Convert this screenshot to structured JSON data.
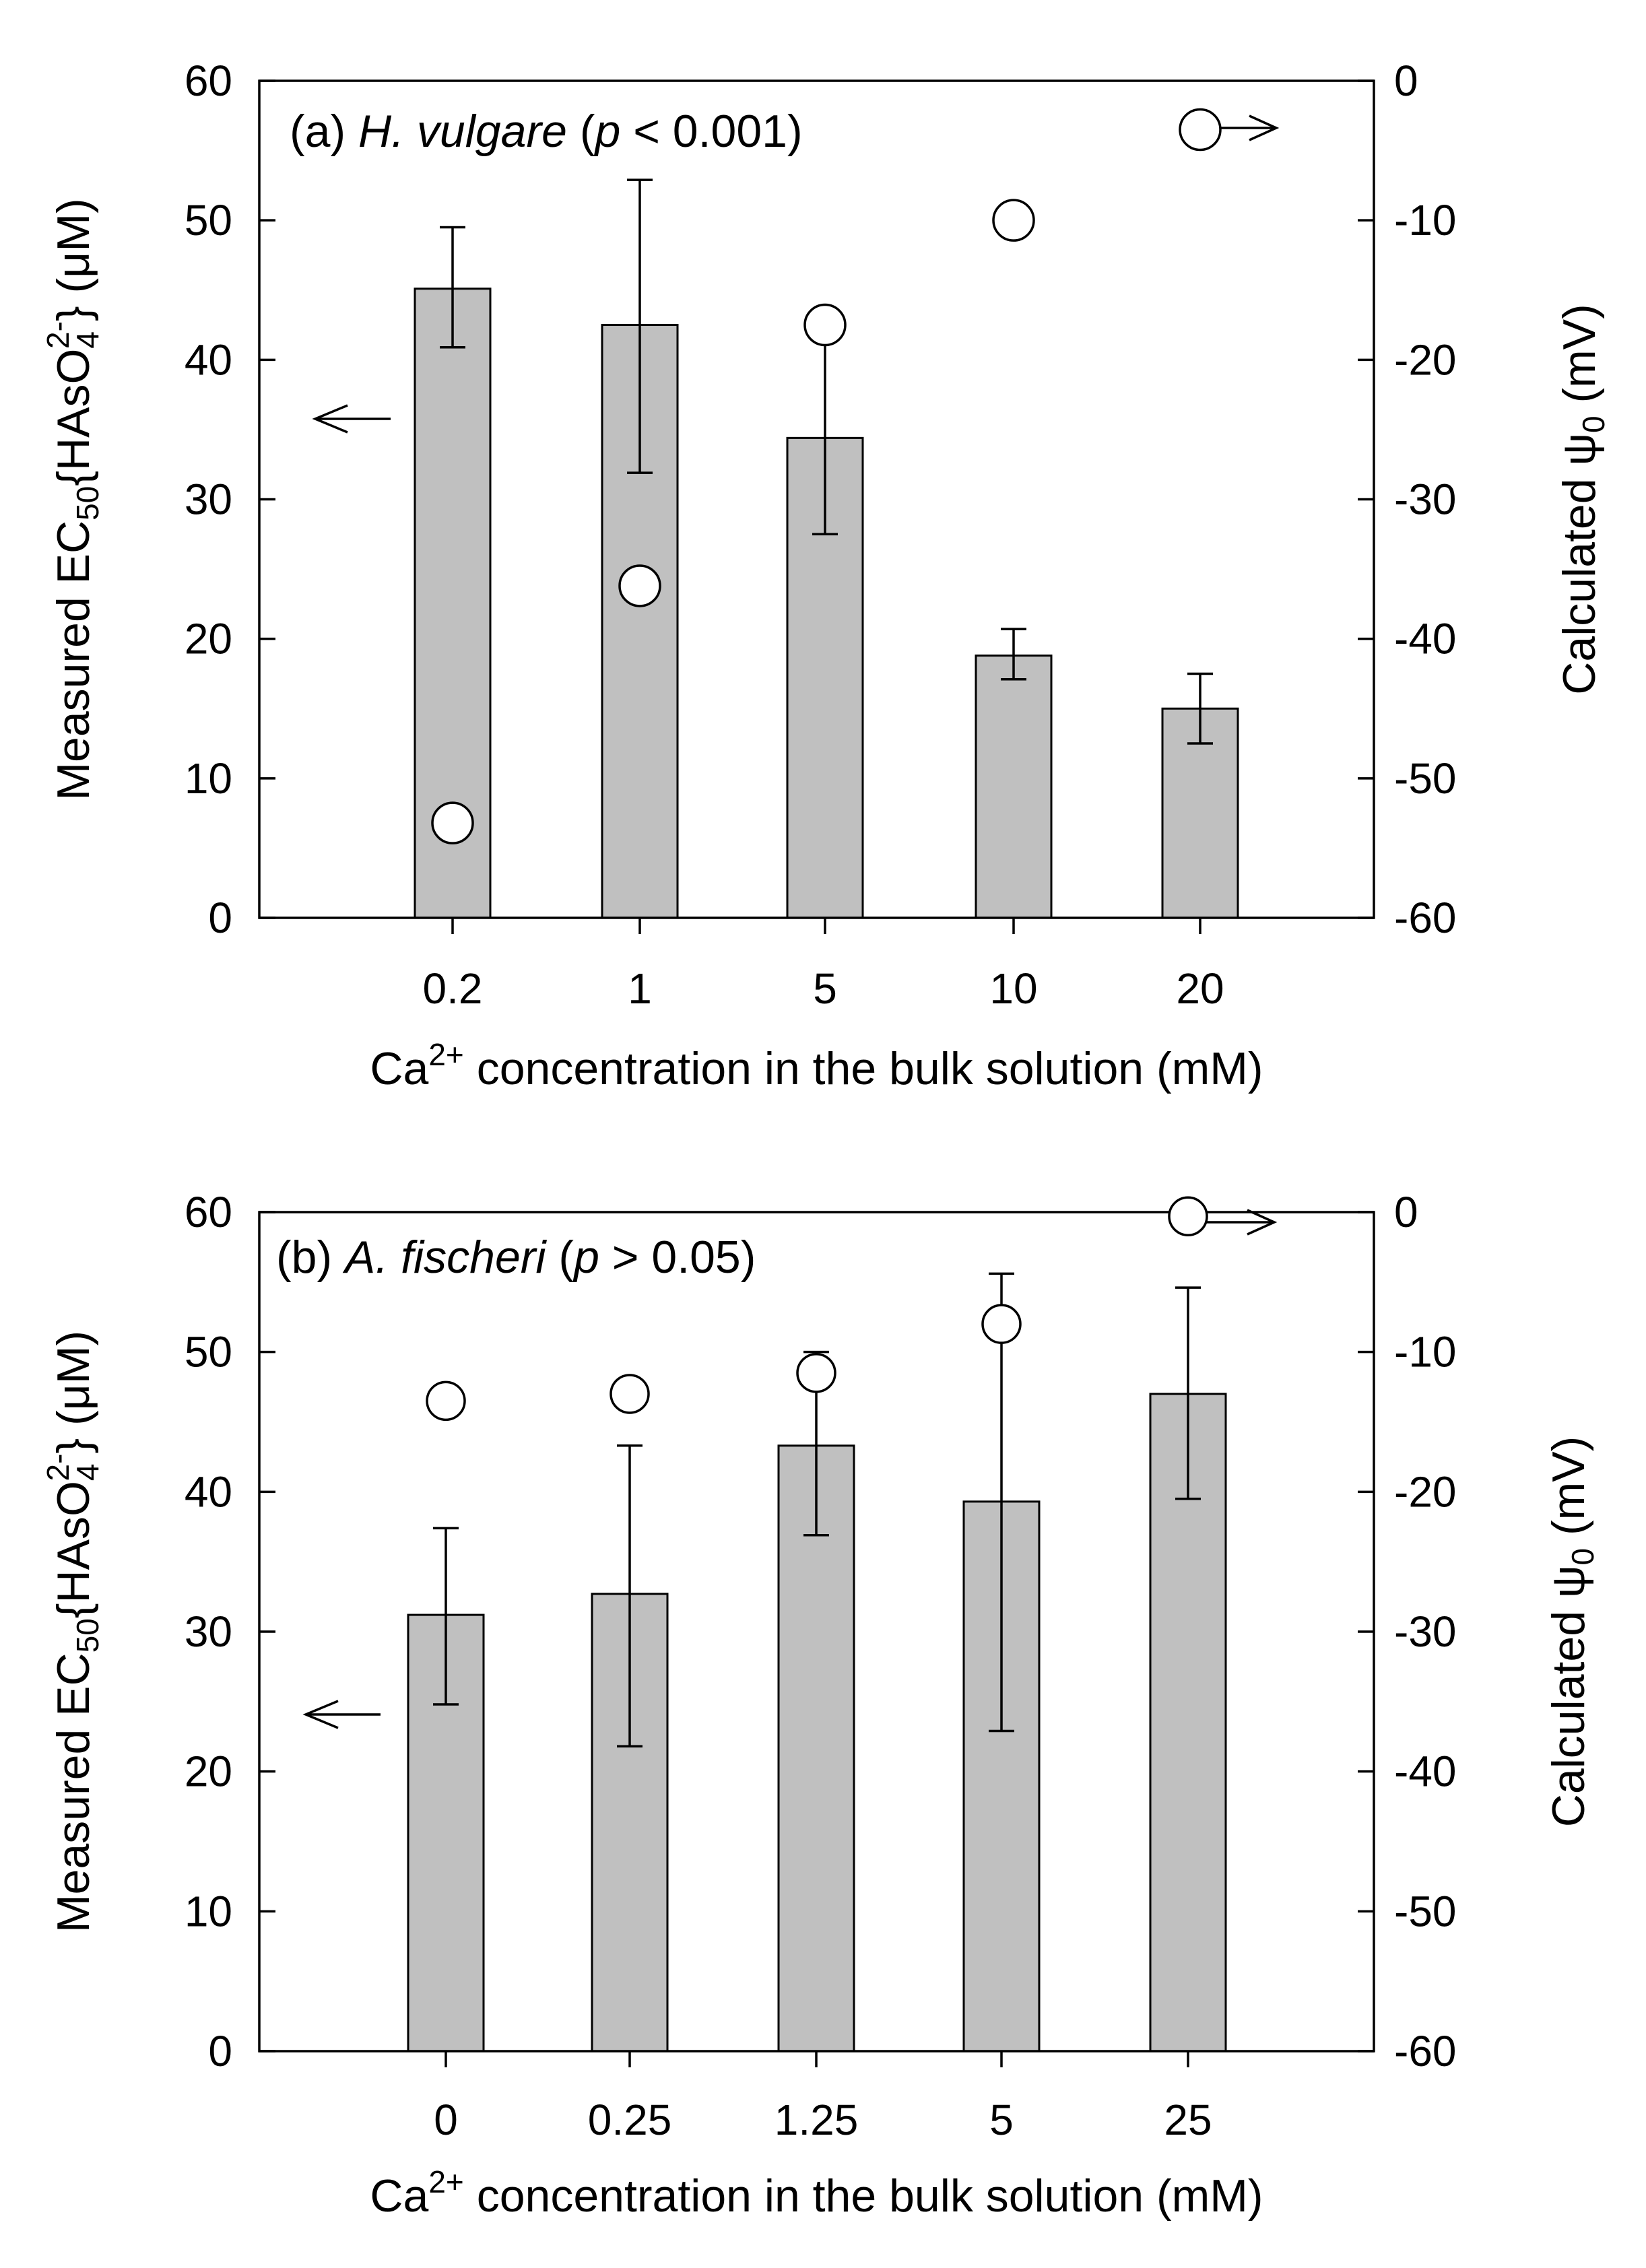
{
  "chart_data": [
    {
      "type": "bar",
      "panel_label": "(a)",
      "species": "H. vulgare",
      "p_letter": "p",
      "p_rest": " < 0.001)",
      "categories": [
        "0.2",
        "1",
        "5",
        "10",
        "20"
      ],
      "values": [
        45.1,
        42.5,
        34.4,
        18.8,
        15.0
      ],
      "error_low": [
        40.9,
        31.9,
        27.5,
        17.1,
        12.5
      ],
      "error_high": [
        49.5,
        52.9,
        41.4,
        20.7,
        17.5
      ],
      "right_values": [
        -53.2,
        -36.2,
        -17.5,
        -10.0,
        -3.5
      ],
      "ylim": [
        0,
        60
      ],
      "yticks": [
        "0",
        "10",
        "20",
        "30",
        "40",
        "50",
        "60"
      ],
      "y2lim": [
        -60,
        0
      ],
      "y2ticks": [
        "-60",
        "-50",
        "-40",
        "-30",
        "-20",
        "-10",
        "0"
      ],
      "ylabel_main": "Measured EC",
      "ylabel_sub": "50",
      "ylabel_brace": "{HAsO",
      "ylabel_sub2": "4",
      "ylabel_sup": "2-",
      "ylabel_end": "} (μM)",
      "y2label_main": "Calculated ψ",
      "y2label_sub": "0",
      "y2label_end": " (mV)",
      "xlabel_main": "Ca",
      "xlabel_sup": "2+",
      "xlabel_end": " concentration in the bulk solution (mM)"
    },
    {
      "type": "bar",
      "panel_label": "(b)",
      "species": "A. fischeri",
      "p_letter": "p",
      "p_rest": " > 0.05)",
      "categories": [
        "0",
        "0.25",
        "1.25",
        "5",
        "25"
      ],
      "values": [
        31.2,
        32.7,
        43.3,
        39.3,
        47.0
      ],
      "error_low": [
        24.8,
        21.8,
        36.9,
        22.9,
        39.5
      ],
      "error_high": [
        37.4,
        43.3,
        50.0,
        55.6,
        54.6
      ],
      "right_values": [
        -13.5,
        -13.0,
        -11.5,
        -8.0,
        -0.3
      ],
      "ylim": [
        0,
        60
      ],
      "yticks": [
        "0",
        "10",
        "20",
        "30",
        "40",
        "50",
        "60"
      ],
      "y2lim": [
        -60,
        0
      ],
      "y2ticks": [
        "-60",
        "-50",
        "-40",
        "-30",
        "-20",
        "-10",
        "0"
      ],
      "ylabel_main": "Measured EC",
      "ylabel_sub": "50",
      "ylabel_brace": "{HAsO",
      "ylabel_sub2": "4",
      "ylabel_sup": "2-",
      "ylabel_end": "} (μM)",
      "y2label_main": "Calculated ψ",
      "y2label_sub": "0",
      "y2label_end": " (mV)",
      "xlabel_main": "Ca",
      "xlabel_sup": "2+",
      "xlabel_end": " concentration in the bulk solution (mM)"
    }
  ],
  "colors": {
    "bar_fill": "#c0c0c0",
    "stroke": "#000000",
    "point_fill": "#ffffff"
  }
}
